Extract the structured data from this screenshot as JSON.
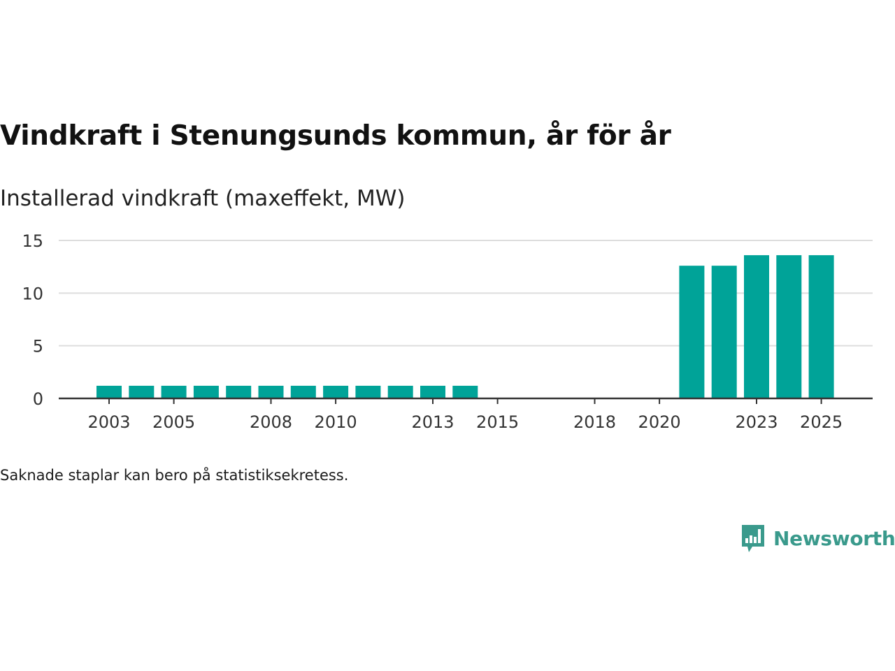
{
  "title": "Vindkraft i Stenungsunds kommun, år för år",
  "subtitle": "Installerad vindkraft (maxeffekt, MW)",
  "note": "Saknade staplar kan bero på statistiksekretess.",
  "brand": {
    "name": "Newsworthy",
    "icon": "newsworthy-logo-icon",
    "color": "#3a9a8c"
  },
  "colors": {
    "bar": "#00a398",
    "grid": "#dddddd",
    "axis": "#333333"
  },
  "chart_data": {
    "type": "bar",
    "title": "Vindkraft i Stenungsunds kommun, år för år",
    "ylabel": "Installerad vindkraft (maxeffekt, MW)",
    "xlabel": "",
    "ylim": [
      0,
      15
    ],
    "yticks": [
      0,
      5,
      10,
      15
    ],
    "xticks": [
      2003,
      2005,
      2008,
      2010,
      2013,
      2015,
      2018,
      2020,
      2023,
      2025
    ],
    "categories": [
      2003,
      2004,
      2005,
      2006,
      2007,
      2008,
      2009,
      2010,
      2011,
      2012,
      2013,
      2014,
      2015,
      2016,
      2017,
      2018,
      2019,
      2020,
      2021,
      2022,
      2023,
      2024,
      2025
    ],
    "values": [
      1.2,
      1.2,
      1.2,
      1.2,
      1.2,
      1.2,
      1.2,
      1.2,
      1.2,
      1.2,
      1.2,
      1.2,
      null,
      null,
      null,
      null,
      null,
      null,
      12.6,
      12.6,
      13.6,
      13.6,
      13.6
    ],
    "grid": true
  }
}
